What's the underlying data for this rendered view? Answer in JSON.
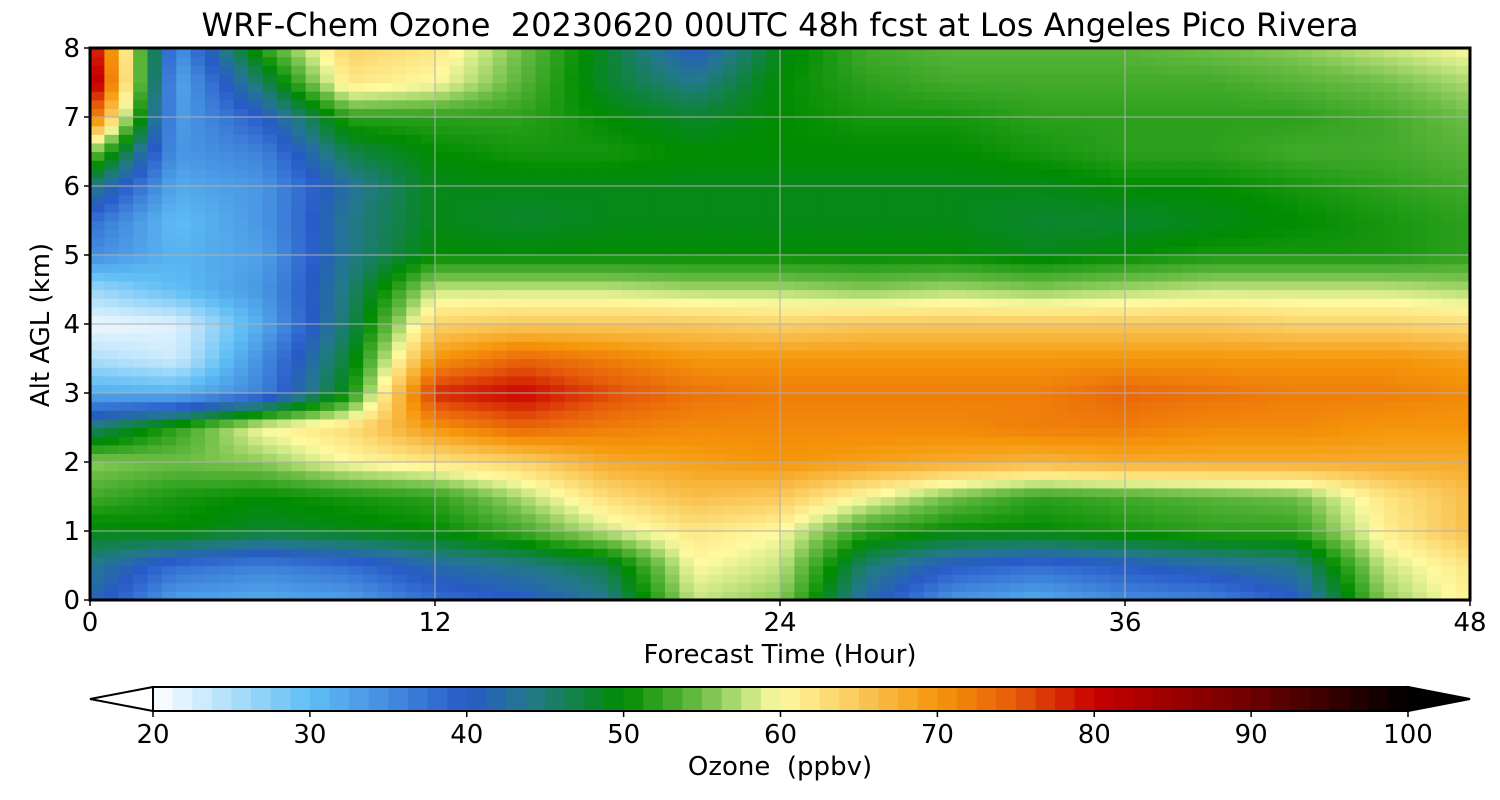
{
  "chart_data": {
    "type": "heatmap",
    "title": "WRF-Chem Ozone  20230620 00UTC 48h fcst at Los Angeles Pico Rivera",
    "xlabel": "Forecast Time (Hour)",
    "ylabel": "Alt AGL (km)",
    "colorbar_label": "Ozone  (ppbv)",
    "xlim": [
      0,
      48
    ],
    "ylim": [
      0,
      8
    ],
    "xticks": [
      0,
      12,
      24,
      36,
      48
    ],
    "yticks": [
      0,
      1,
      2,
      3,
      4,
      5,
      6,
      7,
      8
    ],
    "colorbar_ticks": [
      20,
      30,
      40,
      50,
      60,
      70,
      80,
      90,
      100
    ],
    "colorbar_range": [
      20,
      100
    ],
    "colorbar_extend": "both",
    "grid": true,
    "x_hours": [
      0,
      3,
      6,
      9,
      12,
      15,
      18,
      21,
      24,
      27,
      30,
      33,
      36,
      39,
      42,
      45,
      48
    ],
    "altitudes_km": [
      0,
      0.5,
      1,
      1.5,
      2,
      2.5,
      3,
      3.5,
      4,
      4.5,
      5,
      5.5,
      6,
      6.5,
      7,
      7.5,
      8
    ],
    "ozone_ppbv": [
      [
        42,
        33,
        32,
        33,
        38,
        40,
        44,
        58,
        56,
        42,
        34,
        32,
        35,
        36,
        40,
        56,
        61
      ],
      [
        44,
        38,
        36,
        38,
        42,
        44,
        47,
        60,
        58,
        45,
        40,
        38,
        40,
        42,
        44,
        58,
        62
      ],
      [
        49,
        50,
        48,
        49,
        50,
        53,
        58,
        62,
        60,
        52,
        50,
        50,
        51,
        52,
        52,
        61,
        66
      ],
      [
        53,
        51,
        50,
        51,
        52,
        57,
        63,
        66,
        65,
        60,
        55,
        52,
        53,
        54,
        55,
        62,
        66
      ],
      [
        56,
        55,
        56,
        60,
        62,
        64,
        68,
        69,
        70,
        69,
        68,
        67,
        68,
        68,
        68,
        68,
        68
      ],
      [
        45,
        52,
        60,
        63,
        70,
        74,
        72,
        71,
        71,
        71,
        71,
        72,
        72,
        71,
        71,
        70,
        70
      ],
      [
        32,
        31,
        36,
        50,
        78,
        80,
        76,
        73,
        72,
        72,
        72,
        72,
        74,
        73,
        72,
        72,
        71
      ],
      [
        25,
        23,
        35,
        48,
        70,
        74,
        72,
        70,
        70,
        70,
        70,
        70,
        70,
        70,
        70,
        70,
        69
      ],
      [
        21,
        22,
        32,
        46,
        64,
        65,
        65,
        65,
        64,
        65,
        65,
        65,
        65,
        65,
        64,
        64,
        63
      ],
      [
        26,
        30,
        34,
        45,
        58,
        58,
        58,
        57,
        57,
        56,
        57,
        56,
        57,
        58,
        58,
        58,
        57
      ],
      [
        35,
        31,
        33,
        44,
        50,
        50,
        50,
        50,
        50,
        50,
        50,
        49,
        50,
        51,
        51,
        51,
        52
      ],
      [
        38,
        30,
        34,
        44,
        49,
        48,
        49,
        49,
        49,
        49,
        49,
        48,
        48,
        49,
        50,
        51,
        52
      ],
      [
        45,
        32,
        34,
        43,
        49,
        49,
        49,
        49,
        49,
        49,
        49,
        49,
        50,
        50,
        51,
        52,
        53
      ],
      [
        56,
        34,
        36,
        47,
        50,
        51,
        51,
        50,
        50,
        50,
        50,
        51,
        52,
        52,
        53,
        53,
        54
      ],
      [
        75,
        33,
        40,
        52,
        52,
        52,
        50,
        48,
        50,
        51,
        51,
        52,
        52,
        52,
        52,
        53,
        55
      ],
      [
        85,
        32,
        46,
        62,
        60,
        54,
        48,
        44,
        50,
        52,
        53,
        53,
        53,
        53,
        54,
        55,
        57
      ],
      [
        82,
        34,
        52,
        64,
        62,
        55,
        48,
        40,
        49,
        53,
        54,
        54,
        54,
        55,
        56,
        58,
        60
      ]
    ]
  }
}
